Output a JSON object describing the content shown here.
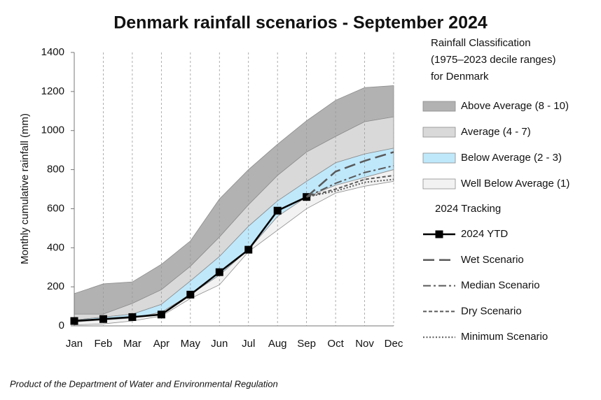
{
  "chart_data": {
    "type": "line",
    "title": "Denmark rainfall scenarios - September 2024",
    "y_label": "Monthly cumulative rainfall (mm)",
    "footer": "Product of the Department of Water and Environmental Regulation",
    "legend_heading": [
      "Rainfall Classification",
      "(1975–2023 decile ranges)",
      "for Denmark"
    ],
    "tracking_heading": "2024 Tracking",
    "categories": [
      "Jan",
      "Feb",
      "Mar",
      "Apr",
      "May",
      "Jun",
      "Jul",
      "Aug",
      "Sep",
      "Oct",
      "Nov",
      "Dec"
    ],
    "ylim": [
      0,
      1400
    ],
    "yticks": [
      0,
      200,
      400,
      600,
      800,
      1000,
      1200,
      1400
    ],
    "bands": [
      {
        "name": "Above Average (8 - 10)",
        "color": "#b2b2b2",
        "lower": [
          60,
          60,
          115,
          185,
          305,
          455,
          620,
          770,
          890,
          970,
          1045,
          1070
        ],
        "upper": [
          165,
          215,
          225,
          315,
          435,
          650,
          800,
          930,
          1050,
          1155,
          1220,
          1230
        ]
      },
      {
        "name": "Average (4 - 7)",
        "color": "#d9d9d9",
        "lower": [
          30,
          45,
          60,
          110,
          230,
          355,
          510,
          640,
          740,
          835,
          880,
          910
        ],
        "upper": [
          60,
          60,
          115,
          185,
          305,
          455,
          620,
          770,
          890,
          970,
          1045,
          1070
        ]
      },
      {
        "name": "Below Average (2 - 3)",
        "color": "#bfe8fb",
        "lower": [
          20,
          30,
          40,
          70,
          160,
          260,
          390,
          560,
          660,
          720,
          760,
          800
        ],
        "upper": [
          30,
          45,
          60,
          110,
          230,
          355,
          510,
          640,
          740,
          835,
          880,
          910
        ]
      },
      {
        "name": "Well Below Average (1)",
        "color": "#f2f2f2",
        "lower": [
          5,
          10,
          25,
          50,
          140,
          210,
          380,
          490,
          600,
          680,
          715,
          740
        ],
        "upper": [
          20,
          30,
          40,
          70,
          160,
          260,
          390,
          560,
          660,
          720,
          760,
          800
        ]
      }
    ],
    "series": [
      {
        "name": "2024 YTD",
        "color": "#000000",
        "values": [
          25,
          35,
          45,
          58,
          160,
          275,
          390,
          590,
          660,
          null,
          null,
          null
        ]
      },
      {
        "name": "Wet Scenario",
        "color": "#595959",
        "values": [
          null,
          null,
          null,
          null,
          null,
          null,
          null,
          null,
          660,
          790,
          845,
          890
        ]
      },
      {
        "name": "Median Scenario",
        "color": "#595959",
        "values": [
          null,
          null,
          null,
          null,
          null,
          null,
          null,
          null,
          660,
          730,
          785,
          820
        ]
      },
      {
        "name": "Dry Scenario",
        "color": "#595959",
        "values": [
          null,
          null,
          null,
          null,
          null,
          null,
          null,
          null,
          660,
          700,
          750,
          770
        ]
      },
      {
        "name": "Minimum Scenario",
        "color": "#595959",
        "values": [
          null,
          null,
          null,
          null,
          null,
          null,
          null,
          null,
          660,
          690,
          735,
          750
        ]
      }
    ]
  }
}
